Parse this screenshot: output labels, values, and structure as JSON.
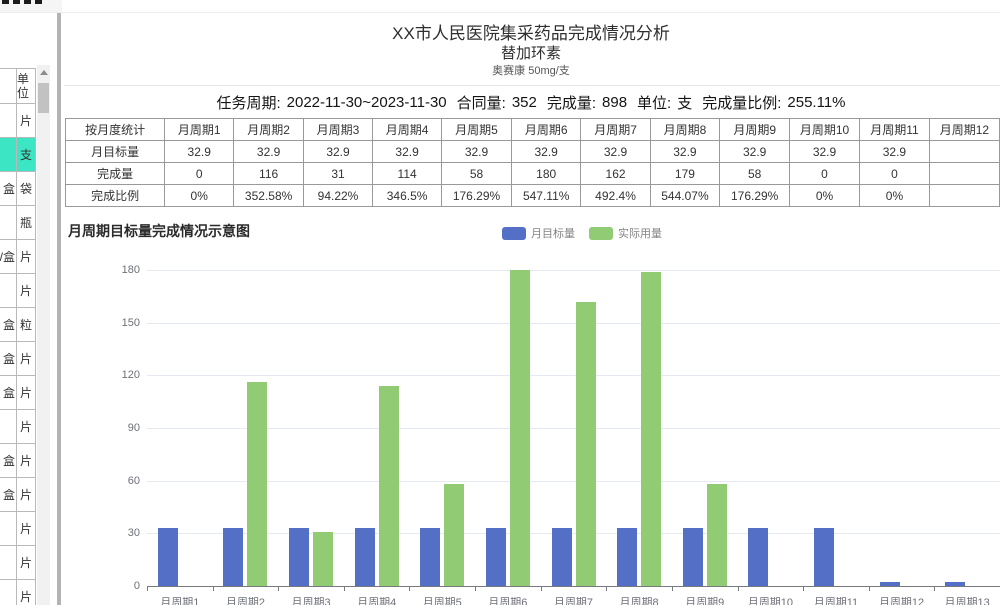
{
  "sidebar": {
    "unit_header": "单位",
    "rows": [
      {
        "fragment": "",
        "unit": "片",
        "selected": false
      },
      {
        "fragment": "",
        "unit": "支",
        "selected": true
      },
      {
        "fragment": "盒",
        "unit": "袋",
        "selected": false
      },
      {
        "fragment": "",
        "unit": "瓶",
        "selected": false
      },
      {
        "fragment": "/盒",
        "unit": "片",
        "selected": false
      },
      {
        "fragment": "",
        "unit": "片",
        "selected": false
      },
      {
        "fragment": "盒",
        "unit": "粒",
        "selected": false
      },
      {
        "fragment": "盒",
        "unit": "片",
        "selected": false
      },
      {
        "fragment": "盒",
        "unit": "片",
        "selected": false
      },
      {
        "fragment": "",
        "unit": "片",
        "selected": false
      },
      {
        "fragment": "盒",
        "unit": "片",
        "selected": false
      },
      {
        "fragment": "盒",
        "unit": "片",
        "selected": false
      },
      {
        "fragment": "",
        "unit": "片",
        "selected": false
      },
      {
        "fragment": "",
        "unit": "片",
        "selected": false
      },
      {
        "fragment": "",
        "unit": "片",
        "selected": false
      }
    ]
  },
  "report": {
    "title": "XX市人民医院集采药品完成情况分析",
    "drug_name": "替加环素",
    "spec": "奥赛康 50mg/支",
    "task": {
      "period_label": "任务周期:",
      "period_value": "2022-11-30~2023-11-30",
      "contract_label": "合同量:",
      "contract_value": "352",
      "completed_label": "完成量:",
      "completed_value": "898",
      "unit_label": "单位:",
      "unit_value": "支",
      "ratio_label": "完成量比例:",
      "ratio_value": "255.11%"
    },
    "table": {
      "stat_label": "按月度统计",
      "row_labels": [
        "月目标量",
        "完成量",
        "完成比例"
      ],
      "periods": [
        {
          "label": "月周期1",
          "target": "32.9",
          "done": "0",
          "ratio": "0%"
        },
        {
          "label": "月周期2",
          "target": "32.9",
          "done": "116",
          "ratio": "352.58%"
        },
        {
          "label": "月周期3",
          "target": "32.9",
          "done": "31",
          "ratio": "94.22%"
        },
        {
          "label": "月周期4",
          "target": "32.9",
          "done": "114",
          "ratio": "346.5%"
        },
        {
          "label": "月周期5",
          "target": "32.9",
          "done": "58",
          "ratio": "176.29%"
        },
        {
          "label": "月周期6",
          "target": "32.9",
          "done": "180",
          "ratio": "547.11%"
        },
        {
          "label": "月周期7",
          "target": "32.9",
          "done": "162",
          "ratio": "492.4%"
        },
        {
          "label": "月周期8",
          "target": "32.9",
          "done": "179",
          "ratio": "544.07%"
        },
        {
          "label": "月周期9",
          "target": "32.9",
          "done": "58",
          "ratio": "176.29%"
        },
        {
          "label": "月周期10",
          "target": "32.9",
          "done": "0",
          "ratio": "0%"
        },
        {
          "label": "月周期11",
          "target": "32.9",
          "done": "0",
          "ratio": "0%"
        },
        {
          "label": "月周期12",
          "target": "",
          "done": "",
          "ratio": ""
        }
      ]
    }
  },
  "chart_data": {
    "type": "bar",
    "title": "月周期目标量完成情况示意图",
    "categories": [
      "月周期1",
      "月周期2",
      "月周期3",
      "月周期4",
      "月周期5",
      "月周期6",
      "月周期7",
      "月周期8",
      "月周期9",
      "月周期10",
      "月周期11",
      "月周期12",
      "月周期13"
    ],
    "series": [
      {
        "name": "月目标量",
        "color": "#5470c6",
        "values": [
          32.9,
          32.9,
          32.9,
          32.9,
          32.9,
          32.9,
          32.9,
          32.9,
          32.9,
          32.9,
          32.9,
          2,
          2
        ]
      },
      {
        "name": "实际用量",
        "color": "#91cc75",
        "values": [
          0,
          116,
          31,
          114,
          58,
          180,
          162,
          179,
          58,
          0,
          0,
          0,
          0
        ]
      }
    ],
    "xlabel": "",
    "ylabel": "",
    "ylim": [
      0,
      180
    ],
    "yticks": [
      0,
      30,
      60,
      90,
      120,
      150,
      180
    ],
    "grid": true,
    "legend_position": "top-center"
  }
}
